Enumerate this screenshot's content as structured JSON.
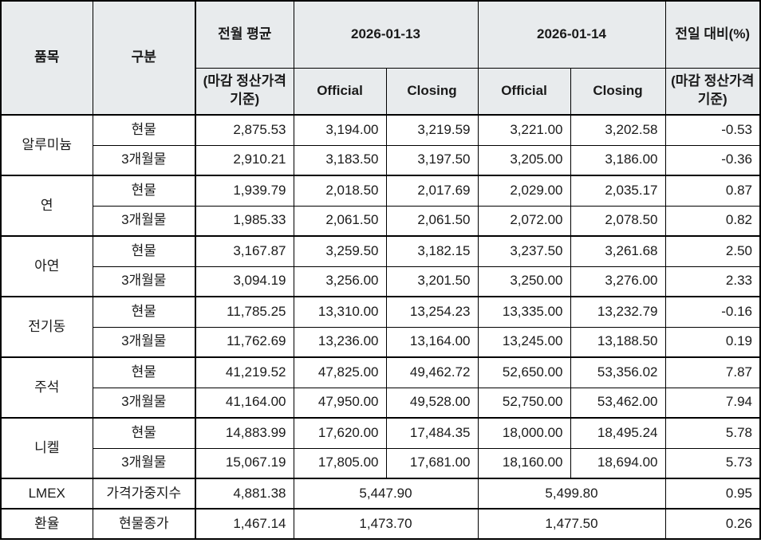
{
  "colors": {
    "header_bg": "#e8ebed",
    "border": "#000000",
    "text": "#1a1a1a",
    "negative": "#ff0000"
  },
  "table": {
    "header": {
      "col_item": "품목",
      "col_category": "구분",
      "col_prev_avg": "전월 평균",
      "basis_note": "(마감 정산가격 기준)",
      "date1": "2026-01-13",
      "date2": "2026-01-14",
      "official": "Official",
      "closing": "Closing",
      "col_dod": "전일 대비(%)"
    },
    "groups": [
      {
        "item": "알루미늄",
        "rows": [
          {
            "category": "현물",
            "prev_avg": "2,875.53",
            "d1_official": "3,194.00",
            "d1_closing": "3,219.59",
            "d2_official": "3,221.00",
            "d2_closing": "3,202.58",
            "dod": "-0.53"
          },
          {
            "category": "3개월물",
            "prev_avg": "2,910.21",
            "d1_official": "3,183.50",
            "d1_closing": "3,197.50",
            "d2_official": "3,205.00",
            "d2_closing": "3,186.00",
            "dod": "-0.36"
          }
        ]
      },
      {
        "item": "연",
        "rows": [
          {
            "category": "현물",
            "prev_avg": "1,939.79",
            "d1_official": "2,018.50",
            "d1_closing": "2,017.69",
            "d2_official": "2,029.00",
            "d2_closing": "2,035.17",
            "dod": "0.87"
          },
          {
            "category": "3개월물",
            "prev_avg": "1,985.33",
            "d1_official": "2,061.50",
            "d1_closing": "2,061.50",
            "d2_official": "2,072.00",
            "d2_closing": "2,078.50",
            "dod": "0.82"
          }
        ]
      },
      {
        "item": "아연",
        "rows": [
          {
            "category": "현물",
            "prev_avg": "3,167.87",
            "d1_official": "3,259.50",
            "d1_closing": "3,182.15",
            "d2_official": "3,237.50",
            "d2_closing": "3,261.68",
            "dod": "2.50"
          },
          {
            "category": "3개월물",
            "prev_avg": "3,094.19",
            "d1_official": "3,256.00",
            "d1_closing": "3,201.50",
            "d2_official": "3,250.00",
            "d2_closing": "3,276.00",
            "dod": "2.33"
          }
        ]
      },
      {
        "item": "전기동",
        "rows": [
          {
            "category": "현물",
            "prev_avg": "11,785.25",
            "d1_official": "13,310.00",
            "d1_closing": "13,254.23",
            "d2_official": "13,335.00",
            "d2_closing": "13,232.79",
            "dod": "-0.16"
          },
          {
            "category": "3개월물",
            "prev_avg": "11,762.69",
            "d1_official": "13,236.00",
            "d1_closing": "13,164.00",
            "d2_official": "13,245.00",
            "d2_closing": "13,188.50",
            "dod": "0.19"
          }
        ]
      },
      {
        "item": "주석",
        "rows": [
          {
            "category": "현물",
            "prev_avg": "41,219.52",
            "d1_official": "47,825.00",
            "d1_closing": "49,462.72",
            "d2_official": "52,650.00",
            "d2_closing": "53,356.02",
            "dod": "7.87"
          },
          {
            "category": "3개월물",
            "prev_avg": "41,164.00",
            "d1_official": "47,950.00",
            "d1_closing": "49,528.00",
            "d2_official": "52,750.00",
            "d2_closing": "53,462.00",
            "dod": "7.94"
          }
        ]
      },
      {
        "item": "니켈",
        "rows": [
          {
            "category": "현물",
            "prev_avg": "14,883.99",
            "d1_official": "17,620.00",
            "d1_closing": "17,484.35",
            "d2_official": "18,000.00",
            "d2_closing": "18,495.24",
            "dod": "5.78"
          },
          {
            "category": "3개월물",
            "prev_avg": "15,067.19",
            "d1_official": "17,805.00",
            "d1_closing": "17,681.00",
            "d2_official": "18,160.00",
            "d2_closing": "18,694.00",
            "dod": "5.73"
          }
        ]
      },
      {
        "item": "LMEX",
        "rows": [
          {
            "category": "가격가중지수",
            "prev_avg": "4,881.38",
            "d1_merged": "5,447.90",
            "d2_merged": "5,499.80",
            "dod": "0.95"
          }
        ]
      },
      {
        "item": "환율",
        "rows": [
          {
            "category": "현물종가",
            "prev_avg": "1,467.14",
            "d1_merged": "1,473.70",
            "d2_merged": "1,477.50",
            "dod": "0.26"
          }
        ]
      }
    ]
  }
}
